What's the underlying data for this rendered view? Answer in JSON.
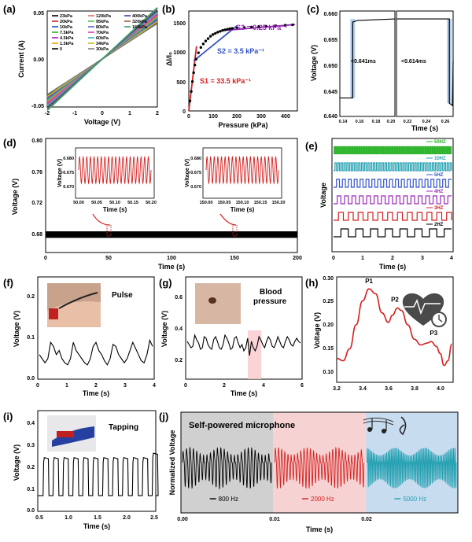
{
  "panel_letters": {
    "a": "(a)",
    "b": "(b)",
    "c": "(c)",
    "d": "(d)",
    "e": "(e)",
    "f": "(f)",
    "g": "(g)",
    "h": "(h)",
    "i": "(i)",
    "j": "(j)"
  },
  "colors": {
    "red": "#d42020",
    "black": "#000000",
    "teal": "#22a0b0",
    "blue": "#3050c8",
    "green": "#20b020",
    "purple": "#9a28b8"
  },
  "labels": {
    "pulse": "Pulse",
    "blood_pressure_1": "Blood",
    "blood_pressure_2": "pressure",
    "tapping": "Tapping",
    "microphone": "Self-powered microphone",
    "c_ann1": "<0.641ms",
    "c_ann2": "<0.614ms"
  },
  "chart_data": [
    {
      "panel": "a",
      "type": "line",
      "xlabel": "Voltage (V)",
      "ylabel": "Current (A)",
      "xlim": [
        -2,
        2
      ],
      "ylim": [
        -0.05,
        0.05
      ],
      "xticks": [
        "-2",
        "-1",
        "0",
        "1",
        "2"
      ],
      "yticks": [
        "-0.05",
        "0.00",
        "0.05"
      ],
      "series": [
        {
          "name": "23kPa",
          "slope": 0.019,
          "color": "#000000"
        },
        {
          "name": "20kPa",
          "slope": 0.02,
          "color": "#d42020"
        },
        {
          "name": "10kPa",
          "slope": 0.021,
          "color": "#2050d0"
        },
        {
          "name": "7.5kPa",
          "slope": 0.022,
          "color": "#20b020"
        },
        {
          "name": "4.5kPa",
          "slope": 0.023,
          "color": "#a020c0"
        },
        {
          "name": "1.5kPa",
          "slope": 0.024,
          "color": "#f0a000"
        },
        {
          "name": "0",
          "slope": 0.025,
          "color": "#000000"
        },
        {
          "name": "120kPa",
          "slope": 0.0225,
          "color": "#e07070"
        },
        {
          "name": "95kPa",
          "slope": 0.0215,
          "color": "#50c050"
        },
        {
          "name": "80kPa",
          "slope": 0.0205,
          "color": "#6060e0"
        },
        {
          "name": "70kPa",
          "slope": 0.0235,
          "color": "#e040a0"
        },
        {
          "name": "60kPa",
          "slope": 0.0245,
          "color": "#40b0c0"
        },
        {
          "name": "34kPa",
          "slope": 0.0195,
          "color": "#c0c020"
        },
        {
          "name": "30kPa",
          "slope": 0.0185,
          "color": "#808080"
        },
        {
          "name": "400kPa",
          "slope": 0.0255,
          "color": "#4040a0"
        },
        {
          "name": "320kPa",
          "slope": 0.0262,
          "color": "#a06030"
        },
        {
          "name": "160kPa",
          "slope": 0.0268,
          "color": "#30a070"
        }
      ]
    },
    {
      "panel": "b",
      "type": "scatter",
      "xlabel": "Pressure (kPa)",
      "ylabel": "ΔI/I₀",
      "xlim": [
        0,
        450
      ],
      "ylim": [
        0,
        1700
      ],
      "xticks": [
        "0",
        "100",
        "200",
        "300",
        "400"
      ],
      "yticks": [
        "0",
        "500",
        "1000",
        "1500"
      ],
      "points": [
        [
          5,
          170
        ],
        [
          10,
          330
        ],
        [
          15,
          500
        ],
        [
          20,
          650
        ],
        [
          25,
          780
        ],
        [
          30,
          880
        ],
        [
          40,
          990
        ],
        [
          50,
          1080
        ],
        [
          60,
          1140
        ],
        [
          70,
          1190
        ],
        [
          80,
          1230
        ],
        [
          90,
          1270
        ],
        [
          100,
          1300
        ],
        [
          110,
          1320
        ],
        [
          120,
          1340
        ],
        [
          130,
          1355
        ],
        [
          140,
          1370
        ],
        [
          150,
          1380
        ],
        [
          160,
          1390
        ],
        [
          170,
          1398
        ],
        [
          180,
          1405
        ],
        [
          200,
          1412
        ],
        [
          230,
          1420
        ],
        [
          260,
          1428
        ],
        [
          290,
          1436
        ],
        [
          320,
          1442
        ],
        [
          360,
          1450
        ],
        [
          400,
          1458
        ],
        [
          430,
          1465
        ]
      ],
      "fits": [
        {
          "label": "S1 = 33.5 kPa⁻¹",
          "color": "#d42020",
          "from": [
            0,
            0
          ],
          "to": [
            32,
            1100
          ]
        },
        {
          "label": "S2 = 3.5 kPa⁻¹",
          "color": "#3050c8",
          "from": [
            20,
            850
          ],
          "to": [
            200,
            1450
          ]
        },
        {
          "label": "S3 = 0.25 kPa⁻¹",
          "color": "#9a28b8",
          "from": [
            150,
            1370
          ],
          "to": [
            440,
            1470
          ]
        }
      ]
    },
    {
      "panel": "c",
      "type": "line",
      "xlabel": "Time (s)",
      "ylabel": "Voltage (V)",
      "ylim": [
        0.64,
        0.66
      ],
      "yticks": [
        "0.640",
        "0.645",
        "0.650",
        "0.655",
        "0.660"
      ],
      "left_xticks": [
        "0.14",
        "0.16",
        "0.18",
        "0.20"
      ],
      "right_xticks": [
        "0.22",
        "0.24",
        "0.26"
      ],
      "left": {
        "xlim": [
          0.14,
          0.2
        ],
        "step_at": 0.154,
        "low": 0.6435,
        "high": 0.6585
      },
      "right": {
        "xlim": [
          0.2,
          0.26
        ],
        "step_at": 0.256,
        "high": 0.6585,
        "low": 0.6425
      }
    },
    {
      "panel": "d",
      "type": "line",
      "xlabel": "Time (s)",
      "ylabel": "Voltage (V)",
      "xlim": [
        0,
        200
      ],
      "ylim": [
        0.66,
        0.8
      ],
      "xticks": [
        "0",
        "50",
        "100",
        "150",
        "200"
      ],
      "yticks": [
        "0.68",
        "0.72",
        "0.76",
        "0.80"
      ],
      "baseline": 0.682,
      "insets": [
        {
          "xlabel": "Time (s)",
          "ylabel": "Voltage (V)",
          "xticks": [
            "50.00",
            "50.05",
            "50.10",
            "50.15",
            "50.20"
          ],
          "yticks": [
            "0.670",
            "0.675",
            "0.680"
          ],
          "ylim": [
            0.668,
            0.682
          ],
          "cycles": 20
        },
        {
          "xlabel": "Time (s)",
          "ylabel": "Voltage (V)",
          "xticks": [
            "150.00",
            "150.05",
            "150.10",
            "150.15",
            "150.20"
          ],
          "yticks": [
            "0.670",
            "0.675",
            "0.680"
          ],
          "ylim": [
            0.668,
            0.682
          ],
          "cycles": 20
        }
      ]
    },
    {
      "panel": "e",
      "type": "line",
      "xlabel": "Time (s)",
      "ylabel": "Voltage",
      "xlim": [
        0,
        4
      ],
      "xticks": [
        "0",
        "1",
        "2",
        "3",
        "4"
      ],
      "series": [
        {
          "name": "50HZ",
          "freq": 50,
          "color": "#20b020"
        },
        {
          "name": "10HZ",
          "freq": 10,
          "color": "#22a0b0"
        },
        {
          "name": "5HZ",
          "freq": 5,
          "color": "#3050c8"
        },
        {
          "name": "4HZ",
          "freq": 4,
          "color": "#9a28b8"
        },
        {
          "name": "3HZ",
          "freq": 3,
          "color": "#d42020"
        },
        {
          "name": "2HZ",
          "freq": 2,
          "color": "#000000"
        }
      ]
    },
    {
      "panel": "f",
      "type": "line",
      "xlabel": "Time (s)",
      "ylabel": "Voltage (V)",
      "xlim": [
        0,
        4
      ],
      "ylim": [
        0,
        0.25
      ],
      "xticks": [
        "0",
        "1",
        "2",
        "3",
        "4"
      ],
      "yticks": [
        "0.0",
        "0.1",
        "0.2"
      ],
      "values": [
        0.06,
        0.05,
        0.04,
        0.05,
        0.09,
        0.08,
        0.06,
        0.07,
        0.05,
        0.04,
        0.035,
        0.05,
        0.09,
        0.07,
        0.06,
        0.05,
        0.04,
        0.035,
        0.05,
        0.08,
        0.09,
        0.07,
        0.06,
        0.045,
        0.035,
        0.05,
        0.085,
        0.08,
        0.06,
        0.05,
        0.04,
        0.05,
        0.07,
        0.09,
        0.075,
        0.06,
        0.045,
        0.04,
        0.06,
        0.095,
        0.08
      ]
    },
    {
      "panel": "g",
      "type": "line",
      "xlabel": "Time (s)",
      "ylabel": "Voltage (V)",
      "xlim": [
        0,
        6
      ],
      "ylim": [
        0,
        0.65
      ],
      "xticks": [
        "0",
        "2",
        "4",
        "6"
      ],
      "yticks": [
        "0.2",
        "0.4",
        "0.6"
      ],
      "highlight": [
        3.2,
        3.9
      ],
      "values": [
        0.24,
        0.22,
        0.2,
        0.21,
        0.28,
        0.25,
        0.23,
        0.19,
        0.2,
        0.27,
        0.26,
        0.22,
        0.2,
        0.19,
        0.25,
        0.27,
        0.24,
        0.2,
        0.19,
        0.22,
        0.28,
        0.26,
        0.23,
        0.19,
        0.2,
        0.26,
        0.27,
        0.23,
        0.2,
        0.22,
        0.18,
        0.2,
        0.26,
        0.15,
        0.24,
        0.2,
        0.18,
        0.21,
        0.27,
        0.25,
        0.22,
        0.2,
        0.24,
        0.27,
        0.25,
        0.21,
        0.2,
        0.23,
        0.27,
        0.24,
        0.21,
        0.2,
        0.24,
        0.27,
        0.25,
        0.22,
        0.21,
        0.24,
        0.26,
        0.24,
        0.23
      ]
    },
    {
      "panel": "h",
      "type": "line",
      "xlabel": "",
      "ylabel": "Voltage (V)",
      "xlim": [
        3.2,
        4.1
      ],
      "ylim": [
        0.08,
        0.3
      ],
      "xticks": [
        "3.2",
        "3.4",
        "3.6",
        "3.8",
        "4.0"
      ],
      "yticks": [
        "0.10",
        "0.15",
        "0.20",
        "0.25",
        "0.30"
      ],
      "points": [
        [
          3.2,
          0.13
        ],
        [
          3.25,
          0.125
        ],
        [
          3.3,
          0.15
        ],
        [
          3.35,
          0.2
        ],
        [
          3.4,
          0.25
        ],
        [
          3.45,
          0.275
        ],
        [
          3.5,
          0.265
        ],
        [
          3.55,
          0.225
        ],
        [
          3.6,
          0.205
        ],
        [
          3.63,
          0.22
        ],
        [
          3.67,
          0.235
        ],
        [
          3.7,
          0.23
        ],
        [
          3.75,
          0.2
        ],
        [
          3.8,
          0.17
        ],
        [
          3.85,
          0.158
        ],
        [
          3.9,
          0.162
        ],
        [
          3.93,
          0.165
        ],
        [
          3.97,
          0.155
        ],
        [
          4.0,
          0.14
        ],
        [
          4.03,
          0.115
        ],
        [
          4.06,
          0.125
        ],
        [
          4.09,
          0.16
        ]
      ],
      "annotations": [
        {
          "text": "P1",
          "x": 3.45,
          "y": 0.28
        },
        {
          "text": "P2",
          "x": 3.65,
          "y": 0.242
        },
        {
          "text": "P3",
          "x": 3.95,
          "y": 0.172
        }
      ]
    },
    {
      "panel": "i",
      "type": "line",
      "xlabel": "Time (s)",
      "ylabel": "Voltage (V)",
      "xlim": [
        0.5,
        2.5
      ],
      "ylim": [
        0,
        0.45
      ],
      "xticks": [
        "0.5",
        "1.0",
        "1.5",
        "2.0",
        "2.5"
      ],
      "yticks": [
        "0.0",
        "0.1",
        "0.2",
        "0.3",
        "0.4"
      ],
      "pulses": 12,
      "low": 0.07,
      "high": 0.24
    },
    {
      "panel": "j",
      "type": "line",
      "xlabel": "Time (s)",
      "ylabel": "Normalized Voltage",
      "xlim": [
        0,
        0.03
      ],
      "xticks": [
        "0.00",
        "0.01",
        "0.02"
      ],
      "series": [
        {
          "name": "800 Hz",
          "color": "#000000",
          "band": "#d0d0d0",
          "from": 0,
          "to": 0.01,
          "cycles": 26
        },
        {
          "name": "2000 Hz",
          "color": "#d42020",
          "band": "#f7d2d2",
          "from": 0.01,
          "to": 0.02,
          "cycles": 28
        },
        {
          "name": "5000 Hz",
          "color": "#22a0b0",
          "band": "#c8dcf0",
          "from": 0.02,
          "to": 0.03,
          "cycles": 60
        }
      ]
    }
  ]
}
